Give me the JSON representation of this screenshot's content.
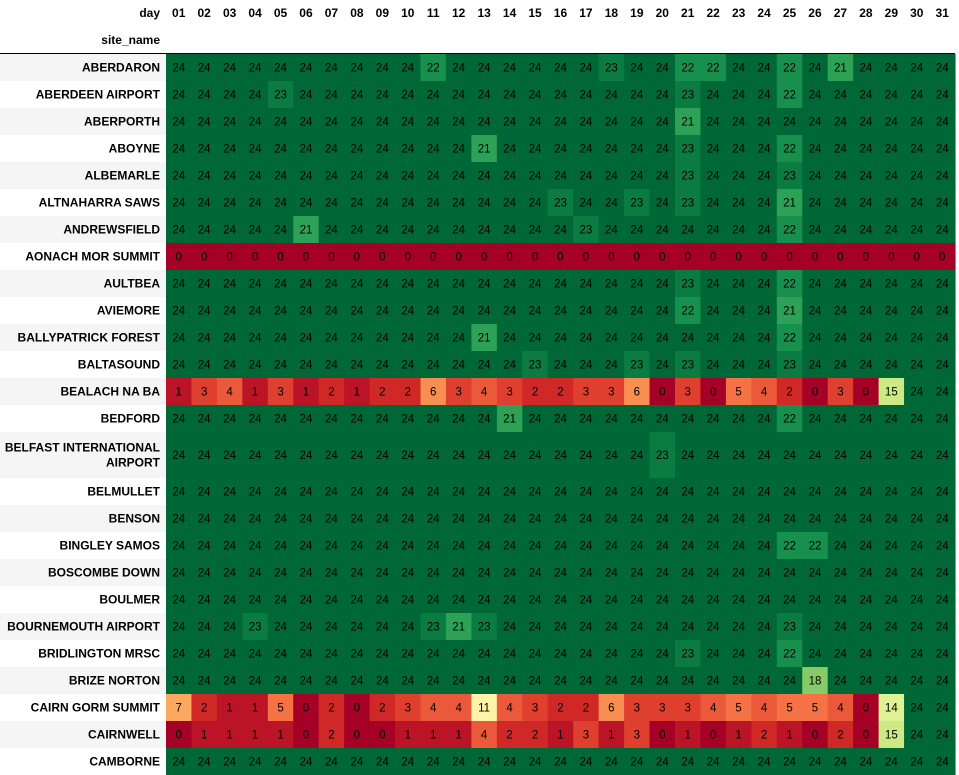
{
  "chart_data": {
    "type": "heatmap",
    "index_name": "site_name",
    "column_name": "day",
    "columns": [
      "01",
      "02",
      "03",
      "04",
      "05",
      "06",
      "07",
      "08",
      "09",
      "10",
      "11",
      "12",
      "13",
      "14",
      "15",
      "16",
      "17",
      "18",
      "19",
      "20",
      "21",
      "22",
      "23",
      "24",
      "25",
      "26",
      "27",
      "28",
      "29",
      "30",
      "31"
    ],
    "vmin": 0,
    "vmax": 24,
    "colormap": "RdYlGn",
    "rows": [
      {
        "name": "ABERDARON",
        "values": [
          24,
          24,
          24,
          24,
          24,
          24,
          24,
          24,
          24,
          24,
          22,
          24,
          24,
          24,
          24,
          24,
          24,
          23,
          24,
          24,
          22,
          22,
          24,
          24,
          22,
          24,
          21,
          24,
          24,
          24,
          24
        ]
      },
      {
        "name": "ABERDEEN AIRPORT",
        "values": [
          24,
          24,
          24,
          24,
          23,
          24,
          24,
          24,
          24,
          24,
          24,
          24,
          24,
          24,
          24,
          24,
          24,
          24,
          24,
          24,
          23,
          24,
          24,
          24,
          22,
          24,
          24,
          24,
          24,
          24,
          24
        ]
      },
      {
        "name": "ABERPORTH",
        "values": [
          24,
          24,
          24,
          24,
          24,
          24,
          24,
          24,
          24,
          24,
          24,
          24,
          24,
          24,
          24,
          24,
          24,
          24,
          24,
          24,
          21,
          24,
          24,
          24,
          24,
          24,
          24,
          24,
          24,
          24,
          24
        ]
      },
      {
        "name": "ABOYNE",
        "values": [
          24,
          24,
          24,
          24,
          24,
          24,
          24,
          24,
          24,
          24,
          24,
          24,
          21,
          24,
          24,
          24,
          24,
          24,
          24,
          24,
          23,
          24,
          24,
          24,
          22,
          24,
          24,
          24,
          24,
          24,
          24
        ]
      },
      {
        "name": "ALBEMARLE",
        "values": [
          24,
          24,
          24,
          24,
          24,
          24,
          24,
          24,
          24,
          24,
          24,
          24,
          24,
          24,
          24,
          24,
          24,
          24,
          24,
          24,
          23,
          24,
          24,
          24,
          23,
          24,
          24,
          24,
          24,
          24,
          24
        ]
      },
      {
        "name": "ALTNAHARRA SAWS",
        "values": [
          24,
          24,
          24,
          24,
          24,
          24,
          24,
          24,
          24,
          24,
          24,
          24,
          24,
          24,
          24,
          23,
          24,
          24,
          23,
          24,
          23,
          24,
          24,
          24,
          21,
          24,
          24,
          24,
          24,
          24,
          24
        ]
      },
      {
        "name": "ANDREWSFIELD",
        "values": [
          24,
          24,
          24,
          24,
          24,
          21,
          24,
          24,
          24,
          24,
          24,
          24,
          24,
          24,
          24,
          24,
          23,
          24,
          24,
          24,
          24,
          24,
          24,
          24,
          22,
          24,
          24,
          24,
          24,
          24,
          24
        ]
      },
      {
        "name": "AONACH MOR SUMMIT",
        "values": [
          0,
          0,
          0,
          0,
          0,
          0,
          0,
          0,
          0,
          0,
          0,
          0,
          0,
          0,
          0,
          0,
          0,
          0,
          0,
          0,
          0,
          0,
          0,
          0,
          0,
          0,
          0,
          0,
          0,
          0,
          0
        ]
      },
      {
        "name": "AULTBEA",
        "values": [
          24,
          24,
          24,
          24,
          24,
          24,
          24,
          24,
          24,
          24,
          24,
          24,
          24,
          24,
          24,
          24,
          24,
          24,
          24,
          24,
          23,
          24,
          24,
          24,
          22,
          24,
          24,
          24,
          24,
          24,
          24
        ]
      },
      {
        "name": "AVIEMORE",
        "values": [
          24,
          24,
          24,
          24,
          24,
          24,
          24,
          24,
          24,
          24,
          24,
          24,
          24,
          24,
          24,
          24,
          24,
          24,
          24,
          24,
          22,
          24,
          24,
          24,
          21,
          24,
          24,
          24,
          24,
          24,
          24
        ]
      },
      {
        "name": "BALLYPATRICK FOREST",
        "values": [
          24,
          24,
          24,
          24,
          24,
          24,
          24,
          24,
          24,
          24,
          24,
          24,
          21,
          24,
          24,
          24,
          24,
          24,
          24,
          24,
          24,
          24,
          24,
          24,
          22,
          24,
          24,
          24,
          24,
          24,
          24
        ]
      },
      {
        "name": "BALTASOUND",
        "values": [
          24,
          24,
          24,
          24,
          24,
          24,
          24,
          24,
          24,
          24,
          24,
          24,
          24,
          24,
          23,
          24,
          24,
          24,
          23,
          24,
          23,
          24,
          24,
          24,
          23,
          24,
          24,
          24,
          24,
          24,
          24
        ]
      },
      {
        "name": "BEALACH NA BA",
        "values": [
          1,
          3,
          4,
          1,
          3,
          1,
          2,
          1,
          2,
          2,
          6,
          3,
          4,
          3,
          2,
          2,
          3,
          3,
          6,
          0,
          3,
          0,
          5,
          4,
          2,
          0,
          3,
          0,
          15,
          24,
          24
        ]
      },
      {
        "name": "BEDFORD",
        "values": [
          24,
          24,
          24,
          24,
          24,
          24,
          24,
          24,
          24,
          24,
          24,
          24,
          24,
          21,
          24,
          24,
          24,
          24,
          24,
          24,
          24,
          24,
          24,
          24,
          22,
          24,
          24,
          24,
          24,
          24,
          24
        ]
      },
      {
        "name": "BELFAST INTERNATIONAL AIRPORT",
        "lines": [
          "BELFAST INTERNATIONAL",
          "AIRPORT"
        ],
        "values": [
          24,
          24,
          24,
          24,
          24,
          24,
          24,
          24,
          24,
          24,
          24,
          24,
          24,
          24,
          24,
          24,
          24,
          24,
          24,
          23,
          24,
          24,
          24,
          24,
          24,
          24,
          24,
          24,
          24,
          24,
          24
        ]
      },
      {
        "name": "BELMULLET",
        "values": [
          24,
          24,
          24,
          24,
          24,
          24,
          24,
          24,
          24,
          24,
          24,
          24,
          24,
          24,
          24,
          24,
          24,
          24,
          24,
          24,
          24,
          24,
          24,
          24,
          24,
          24,
          24,
          24,
          24,
          24,
          24
        ]
      },
      {
        "name": "BENSON",
        "values": [
          24,
          24,
          24,
          24,
          24,
          24,
          24,
          24,
          24,
          24,
          24,
          24,
          24,
          24,
          24,
          24,
          24,
          24,
          24,
          24,
          24,
          24,
          24,
          24,
          24,
          24,
          24,
          24,
          24,
          24,
          24
        ]
      },
      {
        "name": "BINGLEY SAMOS",
        "values": [
          24,
          24,
          24,
          24,
          24,
          24,
          24,
          24,
          24,
          24,
          24,
          24,
          24,
          24,
          24,
          24,
          24,
          24,
          24,
          24,
          24,
          24,
          24,
          24,
          22,
          22,
          24,
          24,
          24,
          24,
          24
        ]
      },
      {
        "name": "BOSCOMBE DOWN",
        "values": [
          24,
          24,
          24,
          24,
          24,
          24,
          24,
          24,
          24,
          24,
          24,
          24,
          24,
          24,
          24,
          24,
          24,
          24,
          24,
          24,
          24,
          24,
          24,
          24,
          24,
          24,
          24,
          24,
          24,
          24,
          24
        ]
      },
      {
        "name": "BOULMER",
        "values": [
          24,
          24,
          24,
          24,
          24,
          24,
          24,
          24,
          24,
          24,
          24,
          24,
          24,
          24,
          24,
          24,
          24,
          24,
          24,
          24,
          24,
          24,
          24,
          24,
          24,
          24,
          24,
          24,
          24,
          24,
          24
        ]
      },
      {
        "name": "BOURNEMOUTH AIRPORT",
        "values": [
          24,
          24,
          24,
          23,
          24,
          24,
          24,
          24,
          24,
          24,
          23,
          21,
          23,
          24,
          24,
          24,
          24,
          24,
          24,
          24,
          24,
          24,
          24,
          24,
          23,
          24,
          24,
          24,
          24,
          24,
          24
        ]
      },
      {
        "name": "BRIDLINGTON MRSC",
        "values": [
          24,
          24,
          24,
          24,
          24,
          24,
          24,
          24,
          24,
          24,
          24,
          24,
          24,
          24,
          24,
          24,
          24,
          24,
          24,
          24,
          23,
          24,
          24,
          24,
          22,
          24,
          24,
          24,
          24,
          24,
          24
        ]
      },
      {
        "name": "BRIZE NORTON",
        "values": [
          24,
          24,
          24,
          24,
          24,
          24,
          24,
          24,
          24,
          24,
          24,
          24,
          24,
          24,
          24,
          24,
          24,
          24,
          24,
          24,
          24,
          24,
          24,
          24,
          24,
          18,
          24,
          24,
          24,
          24,
          24
        ]
      },
      {
        "name": "CAIRN GORM SUMMIT",
        "values": [
          7,
          2,
          1,
          1,
          5,
          0,
          2,
          0,
          2,
          3,
          4,
          4,
          11,
          4,
          3,
          2,
          2,
          6,
          3,
          3,
          3,
          4,
          5,
          4,
          5,
          5,
          4,
          0,
          14,
          24,
          24
        ]
      },
      {
        "name": "CAIRNWELL",
        "values": [
          0,
          1,
          1,
          1,
          1,
          0,
          2,
          0,
          0,
          1,
          1,
          1,
          4,
          2,
          2,
          1,
          3,
          1,
          3,
          0,
          1,
          0,
          1,
          2,
          1,
          0,
          2,
          0,
          15,
          24,
          24
        ]
      },
      {
        "name": "CAMBORNE",
        "values": [
          24,
          24,
          24,
          24,
          24,
          24,
          24,
          24,
          24,
          24,
          24,
          24,
          24,
          24,
          24,
          24,
          24,
          24,
          24,
          24,
          24,
          24,
          24,
          24,
          24,
          24,
          24,
          24,
          24,
          24,
          24
        ]
      }
    ]
  }
}
